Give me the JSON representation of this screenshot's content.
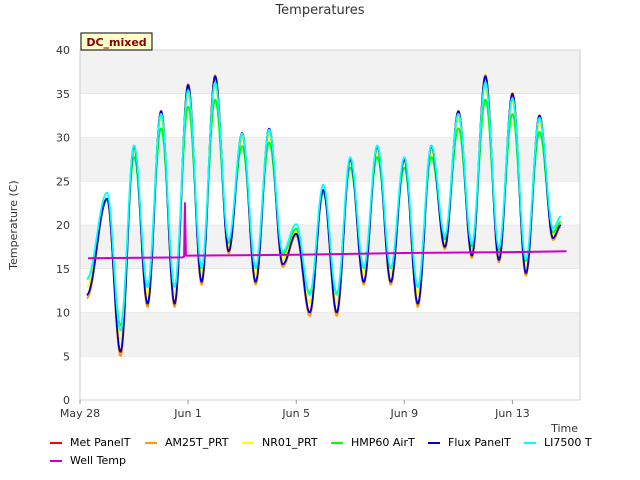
{
  "chart_data": {
    "type": "line",
    "title": "Temperatures",
    "xlabel": "Time",
    "ylabel": "Temperature (C)",
    "badge": "DC_mixed",
    "x_range_days": [
      0,
      18.5
    ],
    "ylim": [
      0,
      40
    ],
    "yticks": [
      0,
      5,
      10,
      15,
      20,
      25,
      30,
      35,
      40
    ],
    "xticks": [
      {
        "day": 0,
        "label": "May 28"
      },
      {
        "day": 4,
        "label": "Jun 1"
      },
      {
        "day": 8,
        "label": "Jun 5"
      },
      {
        "day": 12,
        "label": "Jun 9"
      },
      {
        "day": 16,
        "label": "Jun 13"
      }
    ],
    "grid": true,
    "legend_position": "bottom",
    "daily_extremes": {
      "min_days": [
        0.25,
        1.5,
        2.5,
        3.5,
        4.5,
        5.5,
        6.5,
        7.5,
        8.5,
        9.5,
        10.5,
        11.5,
        12.5,
        13.5,
        14.5,
        15.5,
        16.5,
        17.5
      ],
      "min_values": [
        12,
        5.5,
        11,
        11,
        13.5,
        17,
        13.5,
        15.5,
        10,
        10,
        13.5,
        13.5,
        11,
        17.5,
        16.5,
        16,
        14.5,
        18.5
      ],
      "max_days": [
        1.0,
        2.0,
        3.0,
        4.0,
        5.0,
        6.0,
        7.0,
        8.0,
        9.0,
        10.0,
        11.0,
        12.0,
        13.0,
        14.0,
        15.0,
        16.0,
        17.0,
        17.8
      ],
      "max_values": [
        23,
        29,
        33,
        36,
        37,
        30.5,
        31,
        19,
        24,
        27.5,
        29,
        27.5,
        29,
        33,
        37,
        35,
        32.5,
        20
      ]
    },
    "series": [
      {
        "name": "Met PanelT",
        "color": "#ff0000",
        "offset": 0.0,
        "amp_scale": 1.0
      },
      {
        "name": "AM25T_PRT",
        "color": "#ff9900",
        "offset": -0.2,
        "amp_scale": 1.02
      },
      {
        "name": "NR01_PRT",
        "color": "#ffff00",
        "offset": 0.3,
        "amp_scale": 0.92
      },
      {
        "name": "HMP60 AirT",
        "color": "#00ff00",
        "offset": 0.4,
        "amp_scale": 0.82
      },
      {
        "name": "Flux PanelT",
        "color": "#0000cc",
        "offset": 0.0,
        "amp_scale": 1.0
      },
      {
        "name": "LI7500 T",
        "color": "#00ffff",
        "offset": 1.0,
        "amp_scale": 0.9
      },
      {
        "name": "Well Temp",
        "color": "#cc00cc",
        "x": [
          0.3,
          3.8,
          3.85,
          3.88,
          3.92,
          4.0,
          8.0,
          12.0,
          16.0,
          18.0
        ],
        "values": [
          16.2,
          16.3,
          16.4,
          22.5,
          16.5,
          16.5,
          16.6,
          16.8,
          16.9,
          17.0
        ]
      }
    ]
  }
}
